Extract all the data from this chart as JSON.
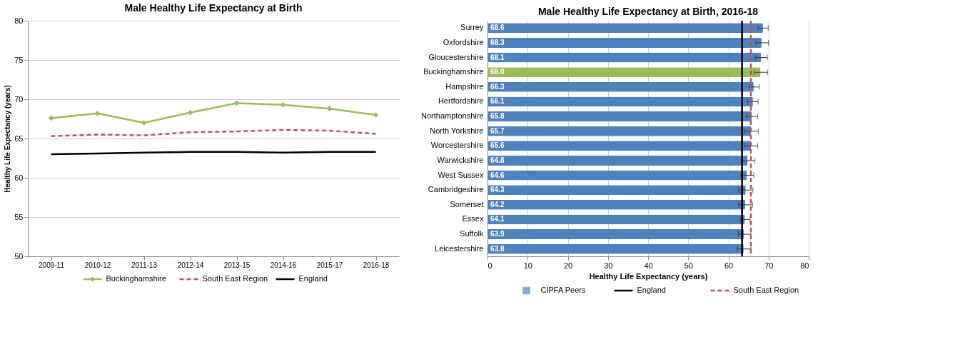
{
  "chart_data": [
    {
      "type": "line",
      "title": "Male Healthy Life Expectancy at Birth",
      "ylabel": "Healthy Life Expectancy (years)",
      "categories": [
        "2009-11",
        "2010-12",
        "2011-13",
        "2012-14",
        "2013-15",
        "2014-16",
        "2015-17",
        "2016-18"
      ],
      "series": [
        {
          "name": "Buckinghamshire",
          "color": "#9bbb59",
          "values": [
            67.6,
            68.2,
            67.0,
            68.3,
            69.5,
            69.3,
            68.8,
            68.0
          ],
          "marker": "diamond",
          "line_style": "solid"
        },
        {
          "name": "South East Region",
          "color": "#c0504d",
          "values": [
            65.3,
            65.5,
            65.4,
            65.8,
            65.9,
            66.1,
            66.0,
            65.6
          ],
          "marker": "none",
          "line_style": "dashed"
        },
        {
          "name": "England",
          "color": "#000000",
          "values": [
            63.0,
            63.1,
            63.2,
            63.3,
            63.3,
            63.2,
            63.3,
            63.3
          ],
          "marker": "none",
          "line_style": "solid"
        }
      ],
      "ylim": [
        50,
        80
      ],
      "yticks": [
        50,
        55,
        60,
        65,
        70,
        75,
        80
      ],
      "grid": "y",
      "legend": "bottom"
    },
    {
      "type": "bar",
      "orientation": "horizontal",
      "title": "Male Healthy Life Expectancy at Birth, 2016-18",
      "xlabel": "Healthy Life Expectancy (years)",
      "categories": [
        "Surrey",
        "Oxfordshire",
        "Gloucestershire",
        "Buckinghamshire",
        "Hampshire",
        "Hertfordshire",
        "Northamptonshire",
        "North Yorkshire",
        "Worcestershire",
        "Warwickshire",
        "West Sussex",
        "Cambridgeshire",
        "Somerset",
        "Essex",
        "Suffolk",
        "Leicestershire"
      ],
      "series": [
        {
          "name": "CIPFA Peers",
          "color": "#4f81bd",
          "values": [
            68.6,
            68.3,
            68.1,
            68.0,
            66.3,
            66.1,
            65.8,
            65.7,
            65.6,
            64.8,
            64.6,
            64.3,
            64.2,
            64.1,
            63.9,
            63.8
          ],
          "colors": [
            "#4f81bd",
            "#4f81bd",
            "#4f81bd",
            "#9bbb59",
            "#4f81bd",
            "#4f81bd",
            "#4f81bd",
            "#4f81bd",
            "#4f81bd",
            "#4f81bd",
            "#4f81bd",
            "#4f81bd",
            "#4f81bd",
            "#4f81bd",
            "#4f81bd",
            "#4f81bd"
          ],
          "errors": [
            [
              67.4,
              69.9
            ],
            [
              66.8,
              70.0
            ],
            [
              66.7,
              69.7
            ],
            [
              66.4,
              69.8
            ],
            [
              65.2,
              67.7
            ],
            [
              64.8,
              67.4
            ],
            [
              64.4,
              67.3
            ],
            [
              64.0,
              67.5
            ],
            [
              64.0,
              67.3
            ],
            [
              63.2,
              66.6
            ],
            [
              63.1,
              66.3
            ],
            [
              62.6,
              66.1
            ],
            [
              62.5,
              66.0
            ],
            [
              63.0,
              65.4
            ],
            [
              62.5,
              65.6
            ],
            [
              62.2,
              65.6
            ]
          ]
        }
      ],
      "ref_lines": [
        {
          "axis": "x",
          "value": 63.4,
          "label": "England",
          "color": "#000000",
          "line_style": "solid"
        },
        {
          "axis": "x",
          "value": 65.6,
          "label": "South East Region",
          "color": "#c0504d",
          "line_style": "dashed"
        }
      ],
      "value_labels": [
        "68.6",
        "68.3",
        "68.1",
        "68.0",
        "66.3",
        "66.1",
        "65.8",
        "65.7",
        "65.6",
        "64.8",
        "64.6",
        "64.3",
        "64.2",
        "64.1",
        "63.9",
        "63.8"
      ],
      "xlim": [
        0,
        80
      ],
      "xticks": [
        0,
        10,
        20,
        30,
        40,
        50,
        60,
        70,
        80
      ],
      "grid": "x",
      "legend": "bottom"
    }
  ]
}
